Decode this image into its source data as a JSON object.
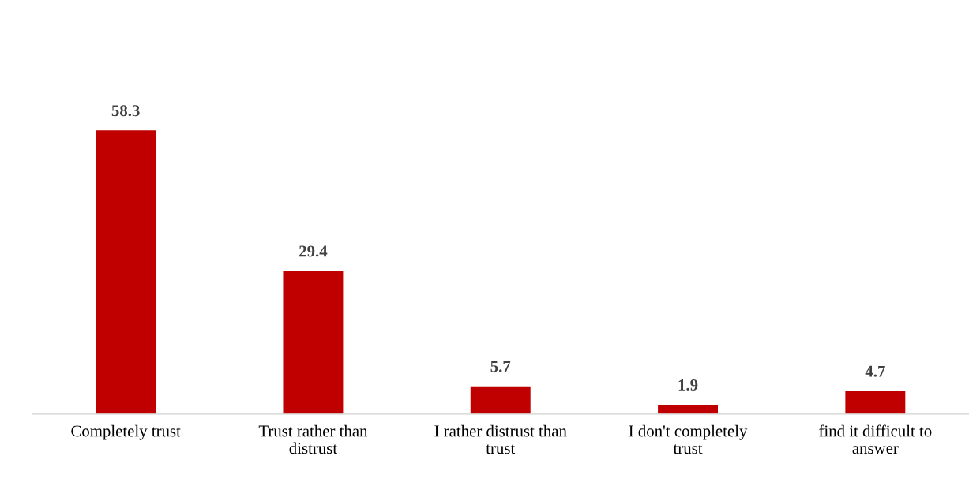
{
  "chart_data": {
    "type": "bar",
    "categories": [
      "Completely trust",
      "Trust rather than\ndistrust",
      "I rather distrust than\ntrust",
      "I don't completely\ntrust",
      "find it difficult to\nanswer"
    ],
    "values": [
      58.3,
      29.4,
      5.7,
      1.9,
      4.7
    ],
    "color": "#c00000",
    "tick_labels": "x",
    "data_labels": true,
    "grid": false,
    "legend": false
  }
}
